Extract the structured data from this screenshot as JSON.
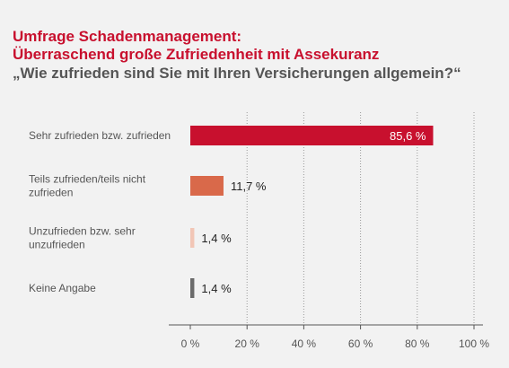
{
  "chart_data": {
    "type": "bar",
    "orientation": "horizontal",
    "title_line1": "Umfrage Schadenmanagement:",
    "title_line2": "Überraschend große Zufriedenheit mit Assekuranz",
    "subtitle": "„Wie zufrieden sind Sie mit Ihren Versicherungen allgemein?“",
    "categories": [
      [
        "Sehr zufrieden bzw. zufrieden"
      ],
      [
        "Teils zufrieden/teils nicht",
        "zufrieden"
      ],
      [
        "Unzufrieden bzw. sehr",
        "unzufrieden"
      ],
      [
        "Keine Angabe"
      ]
    ],
    "values": [
      85.6,
      11.7,
      1.4,
      1.4
    ],
    "value_labels": [
      "85,6 %",
      "11,7 %",
      "1,4 %",
      "1,4 %"
    ],
    "colors": [
      "#c8102e",
      "#d9694a",
      "#f2c6b6",
      "#6b6b6b"
    ],
    "xlim": [
      0,
      100
    ],
    "xticks": [
      0,
      20,
      40,
      60,
      80,
      100
    ],
    "xtick_labels": [
      "0 %",
      "20 %",
      "40 %",
      "60 %",
      "80 %",
      "100 %"
    ],
    "grid": "vertical-dotted"
  }
}
